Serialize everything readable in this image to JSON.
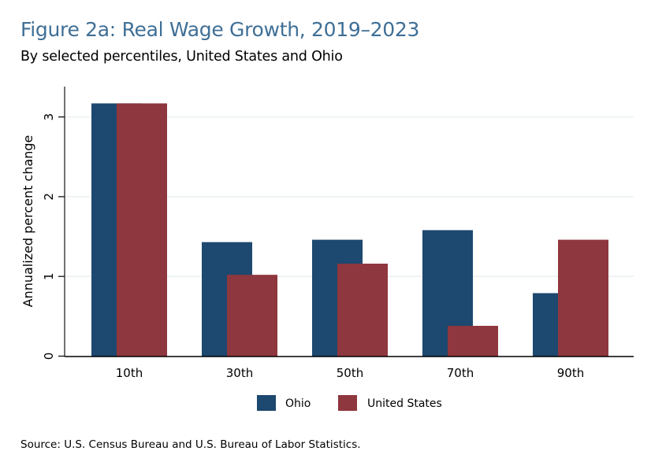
{
  "header": {
    "title": "Figure 2a: Real Wage Growth, 2019–2023",
    "subtitle": "By selected percentiles, United States and Ohio"
  },
  "footer": {
    "source": "Source: U.S. Census Bureau and U.S. Bureau of Labor Statistics."
  },
  "chart_data": {
    "type": "bar",
    "title": "Figure 2a: Real Wage Growth, 2019–2023",
    "subtitle": "By selected percentiles, United States and Ohio",
    "xlabel": "",
    "ylabel": "Annualized percent change",
    "categories": [
      "10th",
      "30th",
      "50th",
      "70th",
      "90th"
    ],
    "series": [
      {
        "name": "Ohio",
        "color": "#1d486f",
        "values": [
          3.17,
          1.43,
          1.46,
          1.58,
          0.79
        ]
      },
      {
        "name": "United States",
        "color": "#8f373e",
        "values": [
          3.17,
          1.02,
          1.16,
          0.38,
          1.46
        ]
      }
    ],
    "ylim": [
      0,
      3.3
    ],
    "yticks": [
      0,
      1,
      2,
      3
    ],
    "ytick_labels": [
      "0",
      "1",
      "2",
      "3"
    ],
    "grid": true,
    "legend_position": "bottom-center",
    "bar_style": "overlapping",
    "source": "Source: U.S. Census Bureau and U.S. Bureau of Labor Statistics."
  }
}
